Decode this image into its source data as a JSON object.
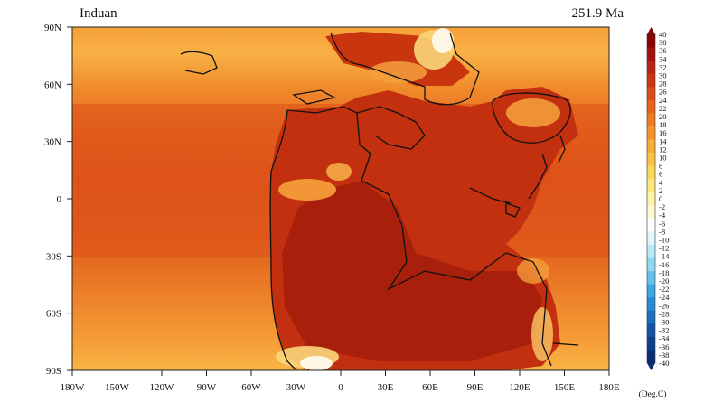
{
  "map": {
    "stage_label": "Induan",
    "age_label": "251.9 Ma",
    "lat_labels": [
      "90N",
      "60N",
      "30N",
      "0",
      "30S",
      "60S",
      "90S"
    ],
    "lon_labels": [
      "180W",
      "150W",
      "120W",
      "90W",
      "60W",
      "30W",
      "0",
      "30E",
      "60E",
      "90E",
      "120E",
      "150E",
      "180E"
    ]
  },
  "colorbar": {
    "ticks": [
      "40",
      "38",
      "36",
      "34",
      "32",
      "30",
      "28",
      "26",
      "24",
      "22",
      "20",
      "18",
      "16",
      "14",
      "12",
      "10",
      "8",
      "6",
      "4",
      "2",
      "0",
      "-2",
      "-4",
      "-6",
      "-8",
      "-10",
      "-12",
      "-14",
      "-16",
      "-18",
      "-20",
      "-22",
      "-24",
      "-26",
      "-28",
      "-30",
      "-32",
      "-34",
      "-36",
      "-38",
      "-40"
    ],
    "unit": "(Deg.C)",
    "colors": [
      "#8b0000",
      "#a50f0f",
      "#bb2211",
      "#cf3413",
      "#de4a16",
      "#e8611a",
      "#f07a1f",
      "#f59527",
      "#f8ad33",
      "#fbc344",
      "#fdd85b",
      "#fee87d",
      "#fff3a6",
      "#fffbd0",
      "#ffffff",
      "#e0f6fc",
      "#b8e9f8",
      "#8fd8f3",
      "#64c3ec",
      "#3ea8e1",
      "#268bd2",
      "#1c6fc0",
      "#1455a8",
      "#0d3f8f",
      "#082d75"
    ]
  }
}
